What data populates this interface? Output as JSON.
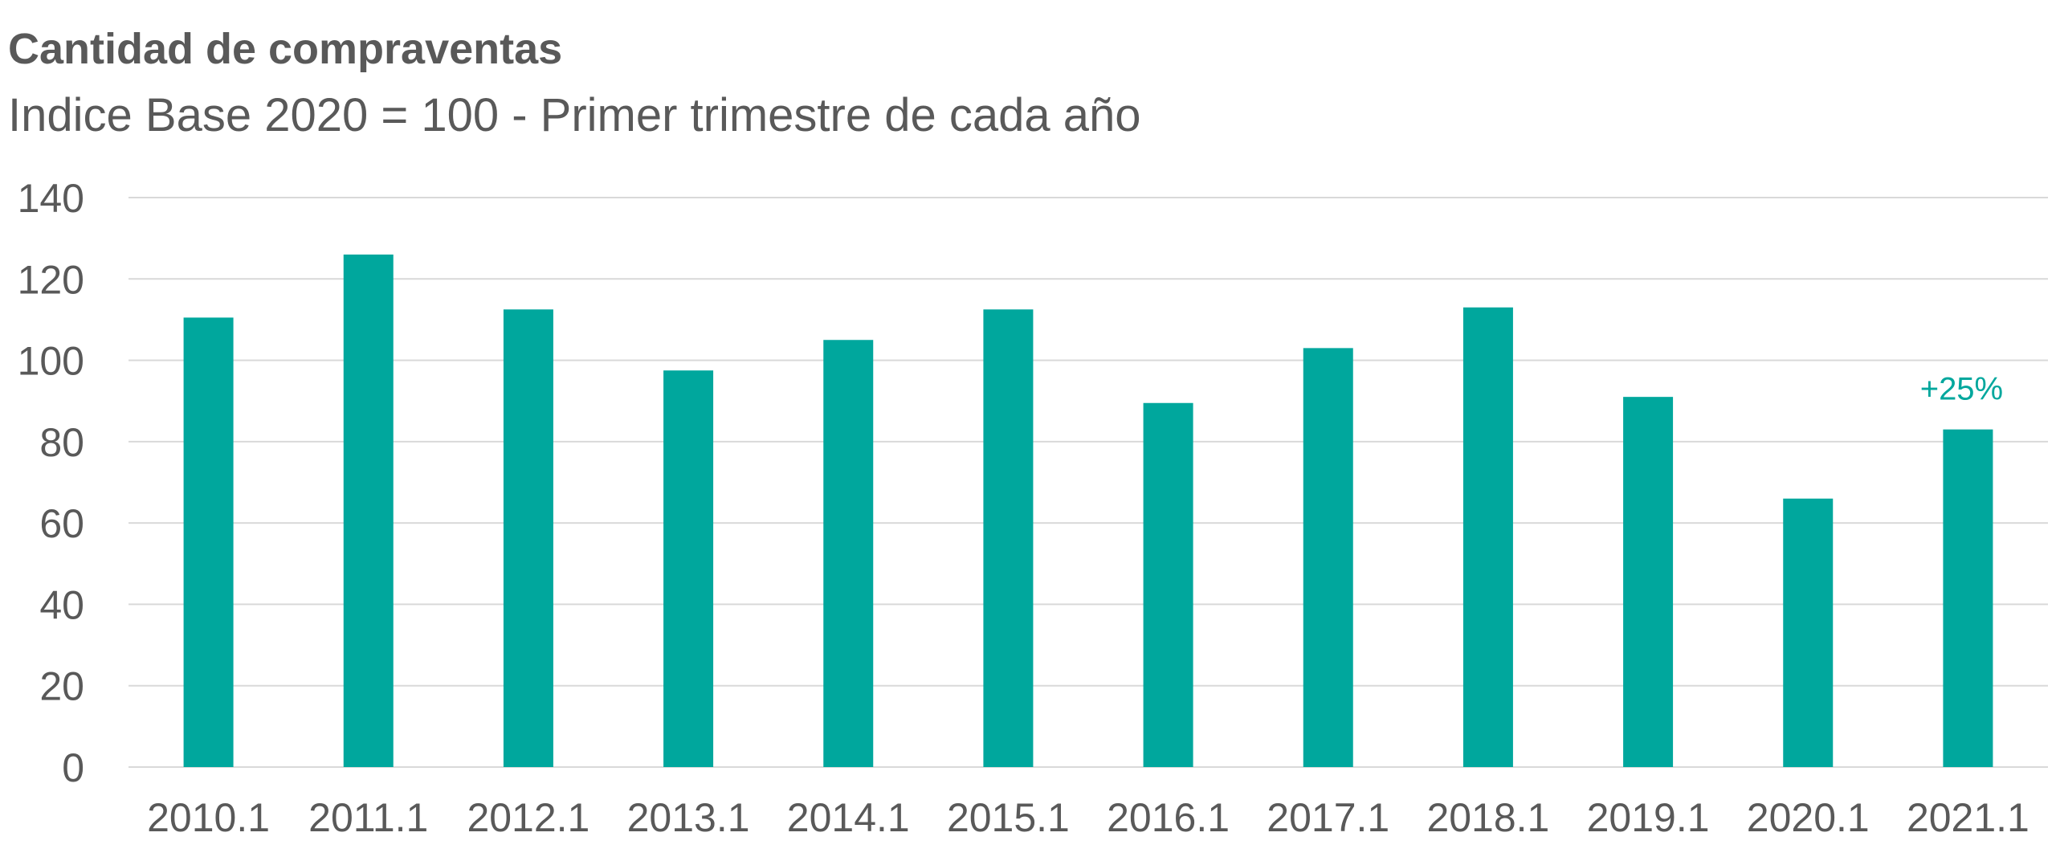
{
  "chart_data": {
    "type": "bar",
    "title": "Cantidad de compraventas",
    "subtitle": "Indice Base 2020 = 100 - Primer trimestre de cada año",
    "xlabel": "",
    "ylabel": "",
    "categories": [
      "2010.1",
      "2011.1",
      "2012.1",
      "2013.1",
      "2014.1",
      "2015.1",
      "2016.1",
      "2017.1",
      "2018.1",
      "2019.1",
      "2020.1",
      "2021.1"
    ],
    "values": [
      110.5,
      126,
      112.5,
      97.5,
      105,
      112.5,
      89.5,
      103,
      113,
      91,
      66,
      83
    ],
    "ylim": [
      0,
      140
    ],
    "yticks": [
      0,
      20,
      40,
      60,
      80,
      100,
      120,
      140
    ],
    "grid": true,
    "legend": "none",
    "annotations": [
      {
        "category": "2021.1",
        "text": "+25%"
      }
    ],
    "colors": {
      "bar": "#00A79D",
      "annotation": "#00A79D",
      "grid": "#D9D9D9",
      "text": "#595959"
    }
  }
}
